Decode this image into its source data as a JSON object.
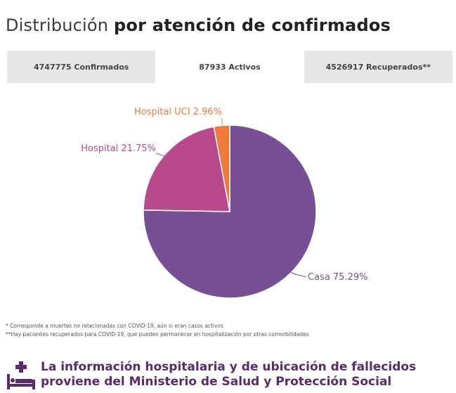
{
  "title": {
    "regular": "Distribución",
    "bold": "por atención de confirmados"
  },
  "tabs": [
    {
      "label": "4747775 Confirmados",
      "active": false
    },
    {
      "label": "87933 Activos",
      "active": true
    },
    {
      "label": "4526917 Recuperados**",
      "active": false
    }
  ],
  "chart_data": {
    "type": "pie",
    "slices": [
      {
        "name": "Casa",
        "value": 75.29,
        "label": "Casa 75.29%",
        "color": "#774f94"
      },
      {
        "name": "Hospital",
        "value": 21.75,
        "label": "Hospital 21.75%",
        "color": "#b8498a"
      },
      {
        "name": "Hospital UCI",
        "value": 2.96,
        "label": "Hospital UCI 2.96%",
        "color": "#f07a3c"
      }
    ]
  },
  "footnotes": [
    "* Corresponde a muertes no relacionadas con COVID-19, aún si eran casos activos",
    "**Hay pacientes recuperados para COVID-19, que pueden permanecer en hospitalización por otras comorbilidades"
  ],
  "info": {
    "icon": "hospital-bed-icon",
    "line1": "La información hospitalaria y de ubicación de fallecidos",
    "line2": "proviene del Ministerio de Salud y Protección Social",
    "color": "#5a2a6e"
  }
}
